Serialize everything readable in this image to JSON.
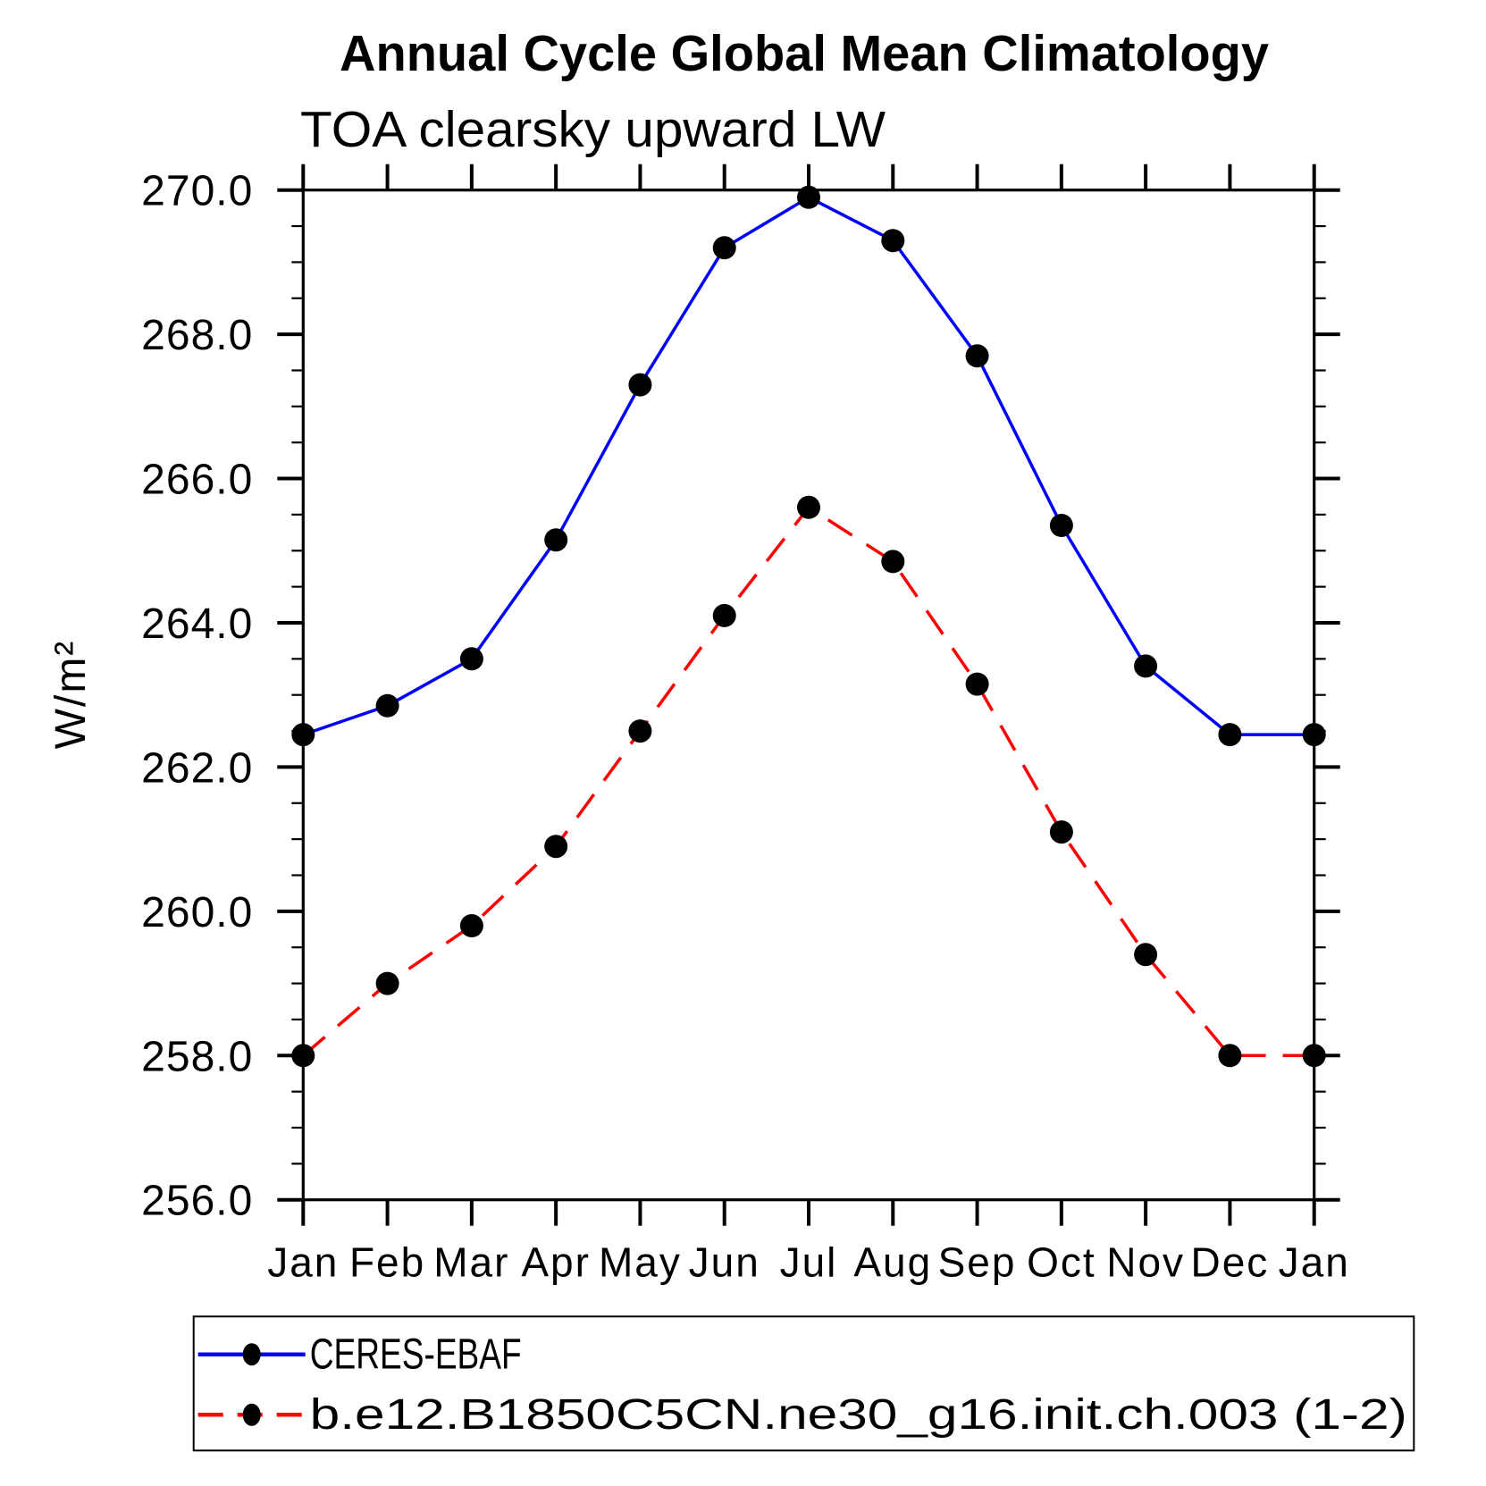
{
  "chart_data": {
    "type": "line",
    "title": "Annual Cycle Global Mean Climatology",
    "subtitle": "TOA clearsky upward LW",
    "ylabel": "W/m²",
    "xlabel": "",
    "categories": [
      "Jan",
      "Feb",
      "Mar",
      "Apr",
      "May",
      "Jun",
      "Jul",
      "Aug",
      "Sep",
      "Oct",
      "Nov",
      "Dec",
      "Jan"
    ],
    "ylim": [
      256.0,
      270.0
    ],
    "ytick_major": 2.0,
    "ytick_minor": 0.5,
    "ytick_labels": [
      "256.0",
      "258.0",
      "260.0",
      "262.0",
      "264.0",
      "266.0",
      "268.0",
      "270.0"
    ],
    "grid": false,
    "legend_position": "bottom",
    "marker": "black-dot",
    "marker_color": "#000000",
    "series": [
      {
        "name": "CERES-EBAF",
        "color": "#0000ff",
        "style": "solid",
        "values": [
          262.45,
          262.85,
          263.5,
          265.15,
          267.3,
          269.2,
          269.9,
          269.3,
          267.7,
          265.35,
          263.4,
          262.45,
          262.45
        ]
      },
      {
        "name": "b.e12.B1850C5CN.ne30_g16.init.ch.003 (1-2)",
        "color": "#ff0000",
        "style": "dashed",
        "values": [
          258.0,
          259.0,
          259.8,
          260.9,
          262.5,
          264.1,
          265.6,
          264.85,
          263.15,
          261.1,
          259.4,
          258.0,
          258.0
        ]
      }
    ]
  }
}
